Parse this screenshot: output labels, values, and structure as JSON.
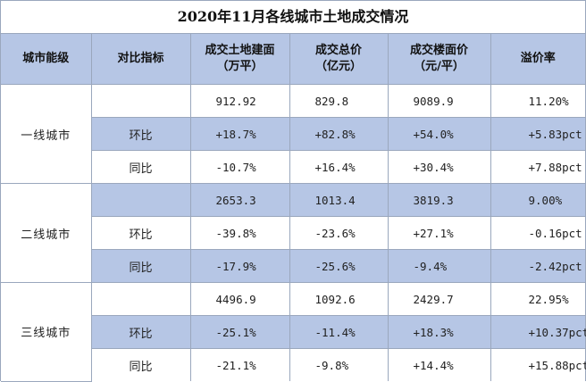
{
  "title": "2020年11月各线城市土地成交情况",
  "headers": {
    "tier": "城市能级",
    "metric": "对比指标",
    "area_1": "成交土地建面",
    "area_2": "（万平）",
    "total_1": "成交总价",
    "total_2": "（亿元）",
    "floor_1": "成交楼面价",
    "floor_2": "（元/平）",
    "premium": "溢价率"
  },
  "groups": [
    {
      "name": "一线城市",
      "rows": [
        {
          "metric": "",
          "area": "912.92",
          "total": "829.8",
          "floor": "9089.9",
          "premium": "11.20%"
        },
        {
          "metric": "环比",
          "area": "+18.7%",
          "total": "+82.8%",
          "floor": "+54.0%",
          "premium": "+5.83pct"
        },
        {
          "metric": "同比",
          "area": "-10.7%",
          "total": "+16.4%",
          "floor": "+30.4%",
          "premium": "+7.88pct"
        }
      ]
    },
    {
      "name": "二线城市",
      "rows": [
        {
          "metric": "",
          "area": "2653.3",
          "total": "1013.4",
          "floor": "3819.3",
          "premium": "9.00%"
        },
        {
          "metric": "环比",
          "area": "-39.8%",
          "total": "-23.6%",
          "floor": "+27.1%",
          "premium": "-0.16pct"
        },
        {
          "metric": "同比",
          "area": "-17.9%",
          "total": "-25.6%",
          "floor": "-9.4%",
          "premium": "-2.42pct"
        }
      ]
    },
    {
      "name": "三线城市",
      "rows": [
        {
          "metric": "",
          "area": "4496.9",
          "total": "1092.6",
          "floor": "2429.7",
          "premium": "22.95%"
        },
        {
          "metric": "环比",
          "area": "-25.1%",
          "total": "-11.4%",
          "floor": "+18.3%",
          "premium": "+10.37pct"
        },
        {
          "metric": "同比",
          "area": "-21.1%",
          "total": "-9.8%",
          "floor": "+14.4%",
          "premium": "+15.88pct"
        }
      ]
    }
  ]
}
